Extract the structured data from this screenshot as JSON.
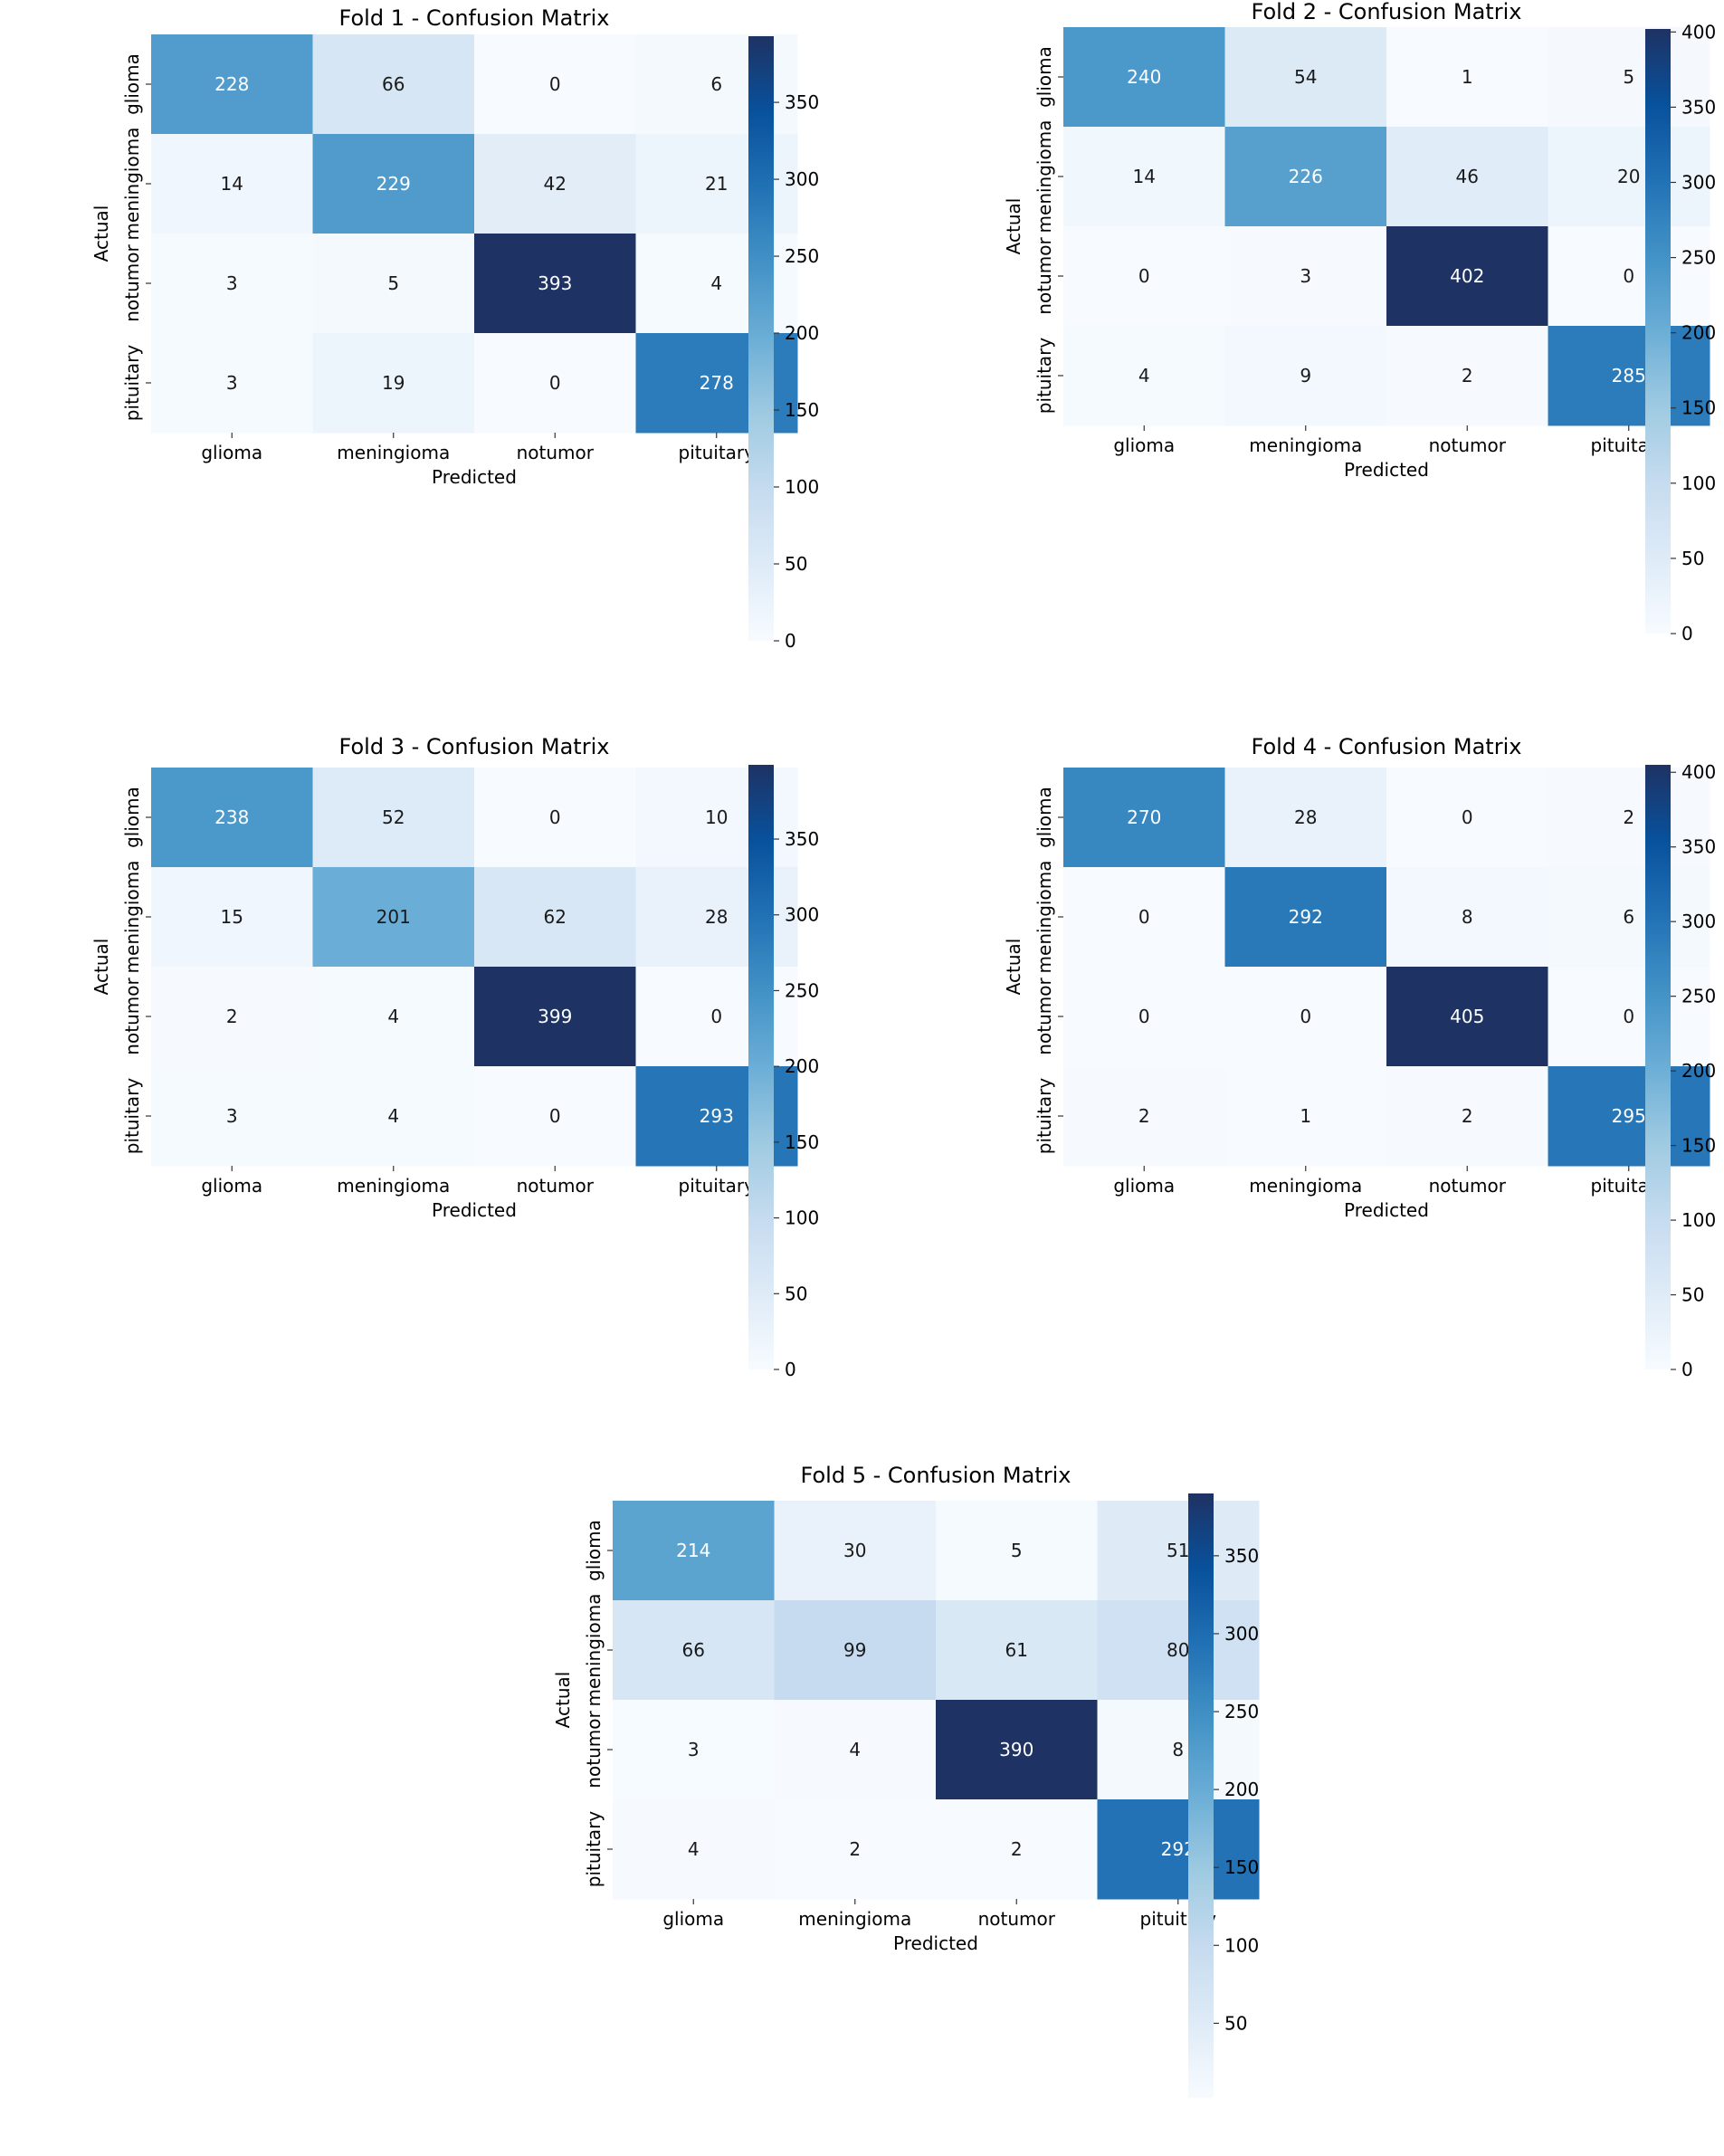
{
  "chart_data": [
    {
      "type": "heatmap",
      "title": "Fold 1 - Confusion Matrix",
      "xlabel": "Predicted",
      "ylabel": "Actual",
      "x_categories": [
        "glioma",
        "meningioma",
        "notumor",
        "pituitary"
      ],
      "y_categories": [
        "glioma",
        "meningioma",
        "notumor",
        "pituitary"
      ],
      "values": [
        [
          228,
          66,
          0,
          6
        ],
        [
          14,
          229,
          42,
          21
        ],
        [
          3,
          5,
          393,
          4
        ],
        [
          3,
          19,
          0,
          278
        ]
      ],
      "colorbar_range": [
        0,
        393
      ],
      "colorbar_ticks": [
        0,
        50,
        100,
        150,
        200,
        250,
        300,
        350
      ],
      "colormap": "Blues"
    },
    {
      "type": "heatmap",
      "title": "Fold 2 - Confusion Matrix",
      "xlabel": "Predicted",
      "ylabel": "Actual",
      "x_categories": [
        "glioma",
        "meningioma",
        "notumor",
        "pituitary"
      ],
      "y_categories": [
        "glioma",
        "meningioma",
        "notumor",
        "pituitary"
      ],
      "values": [
        [
          240,
          54,
          1,
          5
        ],
        [
          14,
          226,
          46,
          20
        ],
        [
          0,
          3,
          402,
          0
        ],
        [
          4,
          9,
          2,
          285
        ]
      ],
      "colorbar_range": [
        0,
        402
      ],
      "colorbar_ticks": [
        0,
        50,
        100,
        150,
        200,
        250,
        300,
        350,
        400
      ],
      "colormap": "Blues"
    },
    {
      "type": "heatmap",
      "title": "Fold 3 - Confusion Matrix",
      "xlabel": "Predicted",
      "ylabel": "Actual",
      "x_categories": [
        "glioma",
        "meningioma",
        "notumor",
        "pituitary"
      ],
      "y_categories": [
        "glioma",
        "meningioma",
        "notumor",
        "pituitary"
      ],
      "values": [
        [
          238,
          52,
          0,
          10
        ],
        [
          15,
          201,
          62,
          28
        ],
        [
          2,
          4,
          399,
          0
        ],
        [
          3,
          4,
          0,
          293
        ]
      ],
      "colorbar_range": [
        0,
        399
      ],
      "colorbar_ticks": [
        0,
        50,
        100,
        150,
        200,
        250,
        300,
        350
      ],
      "colormap": "Blues"
    },
    {
      "type": "heatmap",
      "title": "Fold 4 - Confusion Matrix",
      "xlabel": "Predicted",
      "ylabel": "Actual",
      "x_categories": [
        "glioma",
        "meningioma",
        "notumor",
        "pituitary"
      ],
      "y_categories": [
        "glioma",
        "meningioma",
        "notumor",
        "pituitary"
      ],
      "values": [
        [
          270,
          28,
          0,
          2
        ],
        [
          0,
          292,
          8,
          6
        ],
        [
          0,
          0,
          405,
          0
        ],
        [
          2,
          1,
          2,
          295
        ]
      ],
      "colorbar_range": [
        0,
        405
      ],
      "colorbar_ticks": [
        0,
        50,
        100,
        150,
        200,
        250,
        300,
        350,
        400
      ],
      "colormap": "Blues"
    },
    {
      "type": "heatmap",
      "title": "Fold 5 - Confusion Matrix",
      "xlabel": "Predicted",
      "ylabel": "Actual",
      "x_categories": [
        "glioma",
        "meningioma",
        "notumor",
        "pituitary"
      ],
      "y_categories": [
        "glioma",
        "meningioma",
        "notumor",
        "pituitary"
      ],
      "values": [
        [
          214,
          30,
          5,
          51
        ],
        [
          66,
          99,
          61,
          80
        ],
        [
          3,
          4,
          390,
          8
        ],
        [
          4,
          2,
          2,
          292
        ]
      ],
      "colorbar_range": [
        2,
        390
      ],
      "colorbar_ticks": [
        50,
        100,
        150,
        200,
        250,
        300,
        350
      ],
      "colormap": "Blues"
    }
  ]
}
